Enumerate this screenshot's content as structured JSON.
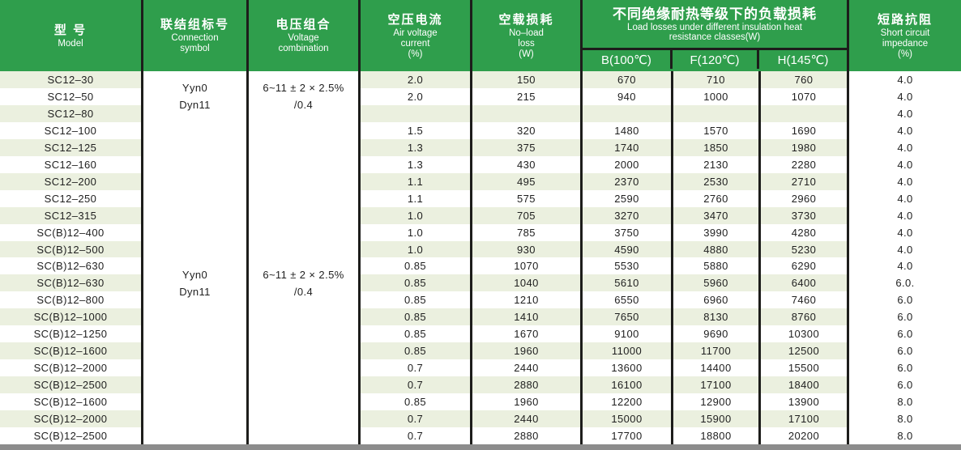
{
  "header": {
    "model": {
      "zh": "型 号",
      "en1": "Model"
    },
    "connection": {
      "zh": "联结组标号",
      "en1": "Connection",
      "en2": "symbol"
    },
    "voltage": {
      "zh": "电压组合",
      "en1": "Voltage",
      "en2": "combination"
    },
    "air": {
      "zh": "空压电流",
      "en1": "Air voltage",
      "en2": "current",
      "en3": "(%)"
    },
    "noload": {
      "zh": "空载损耗",
      "en1": "No–load",
      "en2": "loss",
      "en3": "(W)"
    },
    "load_group": {
      "zh": "不同绝缘耐热等级下的负载损耗",
      "en1": "Load losses under different insulation heat",
      "en2": "resistance classes(W)",
      "sub_b": "B(100℃)",
      "sub_f": "F(120℃)",
      "sub_h": "H(145℃)"
    },
    "impedance": {
      "zh": "短路抗阻",
      "en1": "Short circuit",
      "en2": "impedance",
      "en3": "(%)"
    }
  },
  "merged": {
    "group1": {
      "connection_line1": "Yyn0",
      "connection_line2": "Dyn11",
      "voltage_line1": "6~11 ± 2 × 2.5%",
      "voltage_line2": "/0.4",
      "row_span": "rows 1-3"
    },
    "group2": {
      "connection_line1": "Yyn0",
      "connection_line2": "Dyn11",
      "voltage_line1": "6~11 ± 2 × 2.5%",
      "voltage_line2": "/0.4",
      "row_span": "rows 4-22"
    }
  },
  "rows": [
    {
      "model": "SC12–30",
      "air": "2.0",
      "noload": "150",
      "b": "670",
      "f": "710",
      "h": "760",
      "imp": "4.0"
    },
    {
      "model": "SC12–50",
      "air": "2.0",
      "noload": "215",
      "b": "940",
      "f": "1000",
      "h": "1070",
      "imp": "4.0"
    },
    {
      "model": "SC12–80",
      "air": "",
      "noload": "",
      "b": "",
      "f": "",
      "h": "",
      "imp": "4.0"
    },
    {
      "model": "SC12–100",
      "air": "1.5",
      "noload": "320",
      "b": "1480",
      "f": "1570",
      "h": "1690",
      "imp": "4.0"
    },
    {
      "model": "SC12–125",
      "air": "1.3",
      "noload": "375",
      "b": "1740",
      "f": "1850",
      "h": "1980",
      "imp": "4.0"
    },
    {
      "model": "SC12–160",
      "air": "1.3",
      "noload": "430",
      "b": "2000",
      "f": "2130",
      "h": "2280",
      "imp": "4.0"
    },
    {
      "model": "SC12–200",
      "air": "1.1",
      "noload": "495",
      "b": "2370",
      "f": "2530",
      "h": "2710",
      "imp": "4.0"
    },
    {
      "model": "SC12–250",
      "air": "1.1",
      "noload": "575",
      "b": "2590",
      "f": "2760",
      "h": "2960",
      "imp": "4.0"
    },
    {
      "model": "SC12–315",
      "air": "1.0",
      "noload": "705",
      "b": "3270",
      "f": "3470",
      "h": "3730",
      "imp": "4.0"
    },
    {
      "model": "SC(B)12–400",
      "air": "1.0",
      "noload": "785",
      "b": "3750",
      "f": "3990",
      "h": "4280",
      "imp": "4.0"
    },
    {
      "model": "SC(B)12–500",
      "air": "1.0",
      "noload": "930",
      "b": "4590",
      "f": "4880",
      "h": "5230",
      "imp": "4.0"
    },
    {
      "model": "SC(B)12–630",
      "air": "0.85",
      "noload": "1070",
      "b": "5530",
      "f": "5880",
      "h": "6290",
      "imp": "4.0"
    },
    {
      "model": "SC(B)12–630",
      "air": "0.85",
      "noload": "1040",
      "b": "5610",
      "f": "5960",
      "h": "6400",
      "imp": "6.0."
    },
    {
      "model": "SC(B)12–800",
      "air": "0.85",
      "noload": "1210",
      "b": "6550",
      "f": "6960",
      "h": "7460",
      "imp": "6.0"
    },
    {
      "model": "SC(B)12–1000",
      "air": "0.85",
      "noload": "1410",
      "b": "7650",
      "f": "8130",
      "h": "8760",
      "imp": "6.0"
    },
    {
      "model": "SC(B)12–1250",
      "air": "0.85",
      "noload": "1670",
      "b": "9100",
      "f": "9690",
      "h": "10300",
      "imp": "6.0"
    },
    {
      "model": "SC(B)12–1600",
      "air": "0.85",
      "noload": "1960",
      "b": "11000",
      "f": "11700",
      "h": "12500",
      "imp": "6.0"
    },
    {
      "model": "SC(B)12–2000",
      "air": "0.7",
      "noload": "2440",
      "b": "13600",
      "f": "14400",
      "h": "15500",
      "imp": "6.0"
    },
    {
      "model": "SC(B)12–2500",
      "air": "0.7",
      "noload": "2880",
      "b": "16100",
      "f": "17100",
      "h": "18400",
      "imp": "6.0"
    },
    {
      "model": "SC(B)12–1600",
      "air": "0.85",
      "noload": "1960",
      "b": "12200",
      "f": "12900",
      "h": "13900",
      "imp": "8.0"
    },
    {
      "model": "SC(B)12–2000",
      "air": "0.7",
      "noload": "2440",
      "b": "15000",
      "f": "15900",
      "h": "17100",
      "imp": "8.0"
    },
    {
      "model": "SC(B)12–2500",
      "air": "0.7",
      "noload": "2880",
      "b": "17700",
      "f": "18800",
      "h": "20200",
      "imp": "8.0"
    }
  ],
  "colors": {
    "header_green": "#2f9e4c",
    "row_shade": "#ebf0df",
    "bottom_bar_gray": "#8c8c8c",
    "grid_line": "#1d1d1b",
    "body_text": "#1f1f1f"
  }
}
